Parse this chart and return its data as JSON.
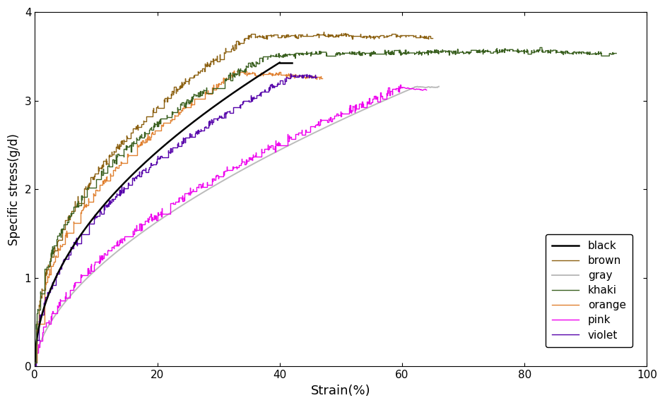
{
  "title": "",
  "xlabel": "Strain(%)",
  "ylabel": "Specific stress(g/d)",
  "xlim": [
    0,
    100
  ],
  "ylim": [
    0,
    4
  ],
  "xticks": [
    0,
    20,
    40,
    60,
    80,
    100
  ],
  "yticks": [
    0,
    1,
    2,
    3,
    4
  ],
  "legend_labels": [
    "black",
    "brown",
    "gray",
    "khaki",
    "orange",
    "pink",
    "violet"
  ],
  "colors": {
    "black": "#000000",
    "brown": "#8B6010",
    "gray": "#BBBBBB",
    "khaki": "#3A6020",
    "orange": "#E08030",
    "pink": "#EE00EE",
    "violet": "#5500AA"
  },
  "background_color": "#ffffff"
}
